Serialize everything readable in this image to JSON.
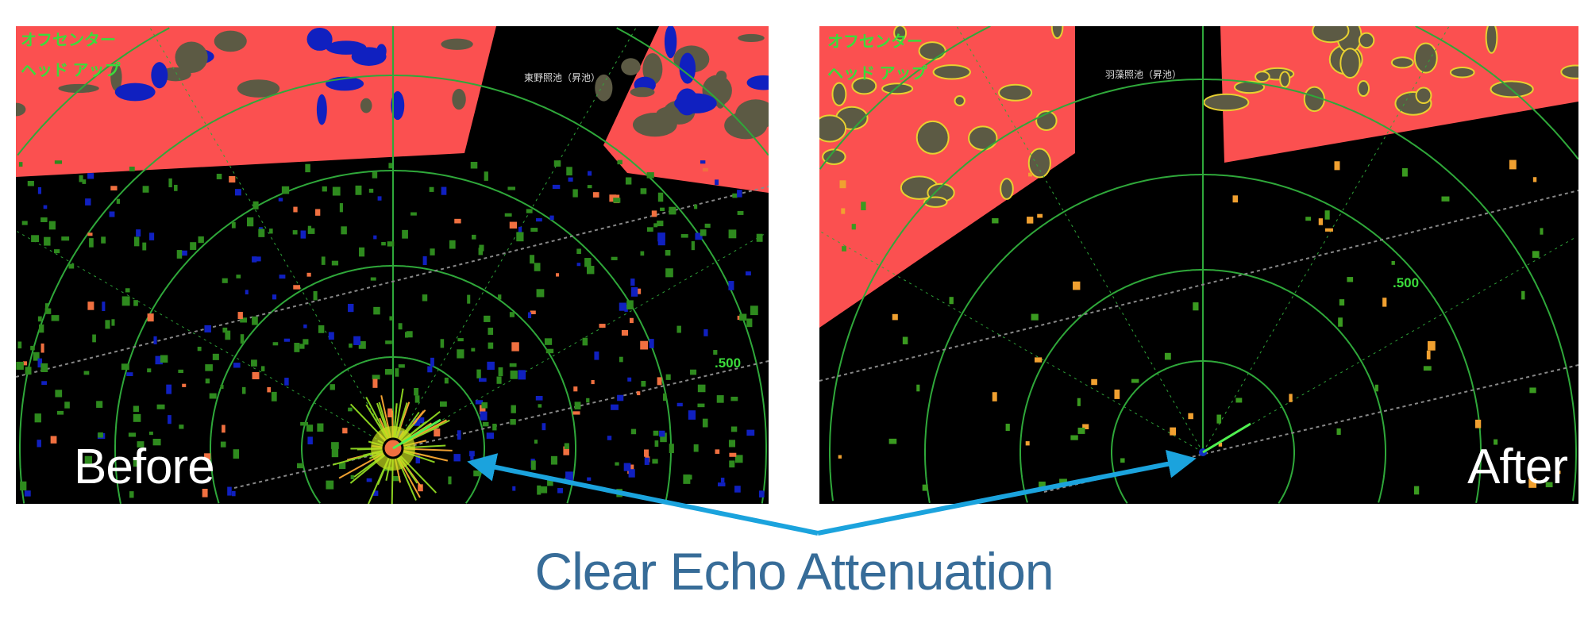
{
  "panels": {
    "before": {
      "label": "Before",
      "mode_line1": "オフセンター",
      "mode_line2": "ヘッド アップ",
      "range_label": ".500",
      "place_label": "東野照池（昇池）"
    },
    "after": {
      "label": "After",
      "mode_line1": "オフセンター",
      "mode_line2": "ヘッド アップ",
      "range_label": ".500",
      "place_label": "羽藻照池（昇池）"
    }
  },
  "caption": "Clear Echo Attenuation",
  "colors": {
    "land": "#fb5050",
    "land_patch": "#5c5a44",
    "ring": "#2fa83a",
    "arrow": "#1ba3dd",
    "caption": "#376c98",
    "noise_blue": "#1020c0"
  }
}
